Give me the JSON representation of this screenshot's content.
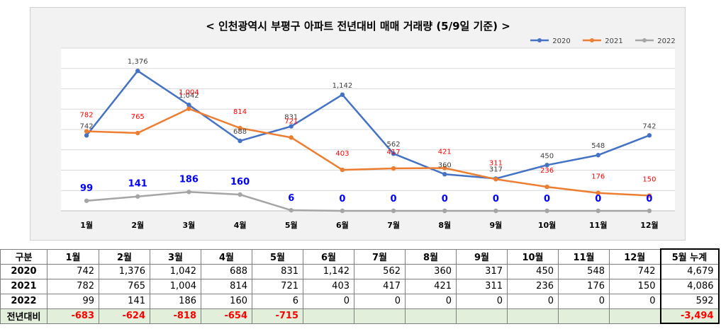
{
  "chart_data": {
    "type": "line",
    "title": "< 인천광역시 부평구  아파트 전년대비 매매 거래량 (5/9일 기준) >",
    "categories": [
      "1월",
      "2월",
      "3월",
      "4월",
      "5월",
      "6월",
      "7월",
      "8월",
      "9월",
      "10월",
      "11월",
      "12월"
    ],
    "series": [
      {
        "name": "2020",
        "color": "#4472c4",
        "values": [
          742,
          1376,
          1042,
          688,
          831,
          1142,
          562,
          360,
          317,
          450,
          548,
          742
        ],
        "labels": [
          "742",
          "1,376",
          "1,042",
          "688",
          "831",
          "1,142",
          "562",
          "360",
          "317",
          "450",
          "548",
          "742"
        ],
        "label_color": "#404040"
      },
      {
        "name": "2021",
        "color": "#ed7d31",
        "values": [
          782,
          765,
          1004,
          814,
          721,
          403,
          417,
          421,
          311,
          236,
          176,
          150
        ],
        "labels": [
          "782",
          "765",
          "1,004",
          "814",
          "721",
          "403",
          "417",
          "421",
          "311",
          "236",
          "176",
          "150"
        ],
        "label_color": "#ff0000"
      },
      {
        "name": "2022",
        "color": "#a5a5a5",
        "values": [
          99,
          141,
          186,
          160,
          6,
          0,
          0,
          0,
          0,
          0,
          0,
          0
        ],
        "labels": [
          "99",
          "141",
          "186",
          "160",
          "6",
          "0",
          "0",
          "0",
          "0",
          "0",
          "0",
          "0"
        ],
        "label_color": "#0000ff"
      }
    ],
    "ylim": [
      0,
      1600
    ],
    "grid": true,
    "legend": "top-right"
  },
  "table": {
    "headers": [
      "구분",
      "1월",
      "2월",
      "3월",
      "4월",
      "5월",
      "6월",
      "7월",
      "8월",
      "9월",
      "10월",
      "11월",
      "12월",
      "5월 누계"
    ],
    "rows": [
      {
        "label": "2020",
        "cells": [
          "742",
          "1,376",
          "1,042",
          "688",
          "831",
          "1,142",
          "562",
          "360",
          "317",
          "450",
          "548",
          "742"
        ],
        "total": "4,679"
      },
      {
        "label": "2021",
        "cells": [
          "782",
          "765",
          "1,004",
          "814",
          "721",
          "403",
          "417",
          "421",
          "311",
          "236",
          "176",
          "150"
        ],
        "total": "4,086"
      },
      {
        "label": "2022",
        "cells": [
          "99",
          "141",
          "186",
          "160",
          "6",
          "0",
          "0",
          "0",
          "0",
          "0",
          "0",
          "0"
        ],
        "total": "592"
      }
    ],
    "diff_row": {
      "label": "전년대비",
      "cells": [
        "-683",
        "-624",
        "-818",
        "-654",
        "-715",
        "",
        "",
        "",
        "",
        "",
        "",
        ""
      ],
      "total": "-3,494"
    }
  }
}
